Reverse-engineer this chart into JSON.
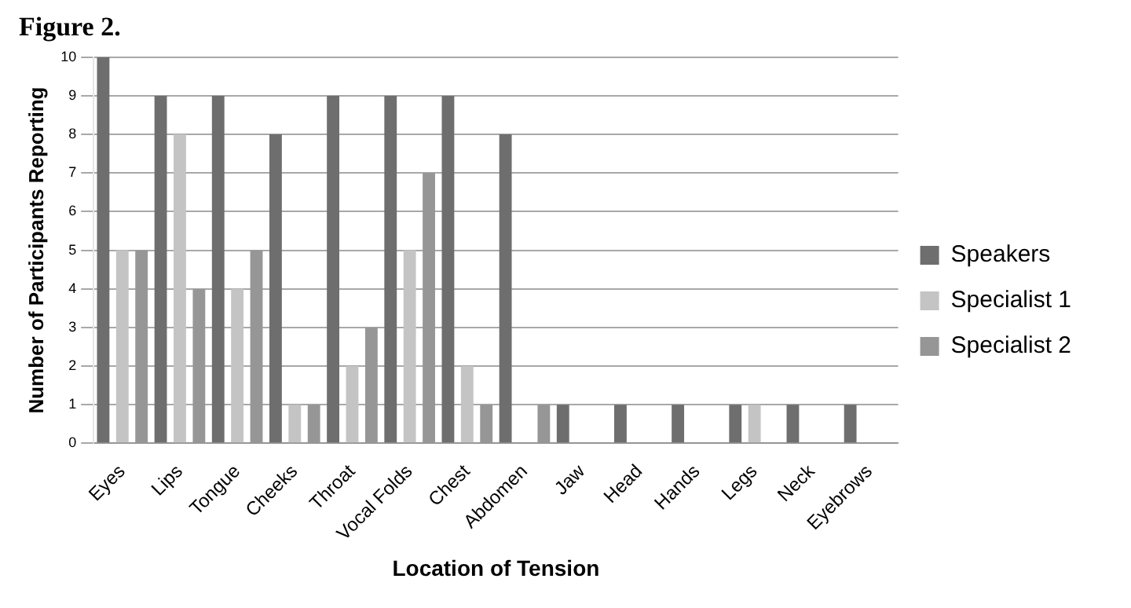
{
  "chart_data": {
    "type": "bar",
    "title": "Figure 2.",
    "xlabel": "Location of Tension",
    "ylabel": "Number of Participants Reporting",
    "categories": [
      "Eyes",
      "Lips",
      "Tongue",
      "Cheeks",
      "Throat",
      "Vocal Folds",
      "Chest",
      "Abdomen",
      "Jaw",
      "Head",
      "Hands",
      "Legs",
      "Neck",
      "Eyebrows"
    ],
    "series": [
      {
        "name": "Speakers",
        "color": "#6e6e6e",
        "values": [
          10,
          9,
          9,
          8,
          9,
          9,
          9,
          8,
          1,
          1,
          1,
          1,
          1,
          1
        ]
      },
      {
        "name": "Specialist 1",
        "color": "#c4c4c4",
        "values": [
          5,
          8,
          4,
          1,
          2,
          5,
          2,
          0,
          0,
          0,
          0,
          1,
          0,
          0
        ]
      },
      {
        "name": "Specialist 2",
        "color": "#969696",
        "values": [
          5,
          4,
          5,
          1,
          3,
          7,
          1,
          1,
          0,
          0,
          0,
          0,
          0,
          0
        ]
      }
    ],
    "ylim": [
      0,
      10
    ],
    "yticks": [
      0,
      1,
      2,
      3,
      4,
      5,
      6,
      7,
      8,
      9,
      10
    ],
    "grid": "y",
    "legend": "right"
  }
}
